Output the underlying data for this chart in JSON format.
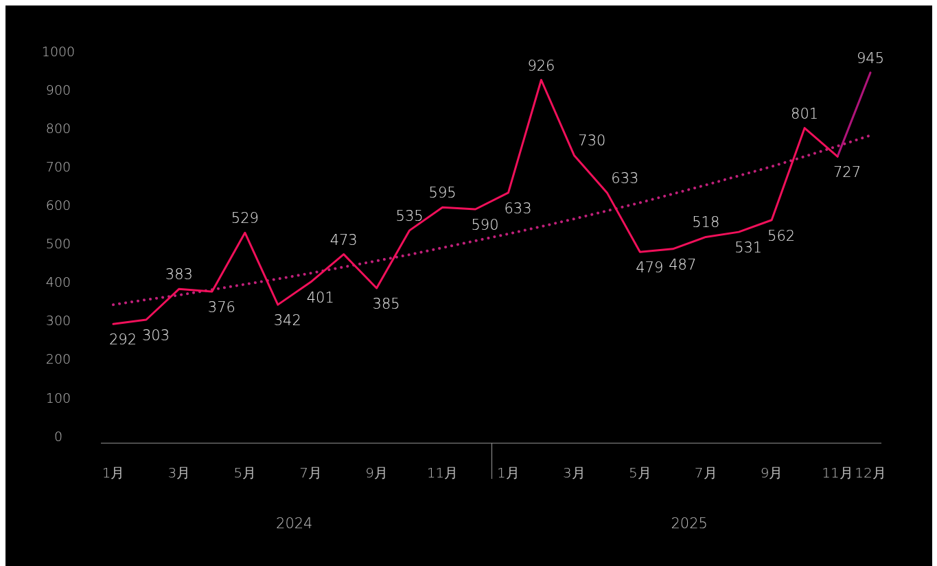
{
  "chart_data": {
    "type": "line",
    "categories": [
      "1月",
      null,
      "3月",
      null,
      "5月",
      null,
      "7月",
      null,
      "9月",
      null,
      "11月",
      null,
      "1月",
      null,
      "3月",
      null,
      "5月",
      null,
      "7月",
      null,
      "9月",
      null,
      "11月",
      "12月"
    ],
    "series": [
      {
        "color": "#f0105a",
        "values": [
          292,
          303,
          383,
          376,
          529,
          342,
          401,
          473,
          385,
          535,
          595,
          590,
          633,
          926,
          730,
          633,
          479,
          487,
          518,
          531,
          562,
          801,
          727,
          null
        ],
        "value_labels": [
          "292",
          "303",
          "383",
          "376",
          "529",
          "342",
          "401",
          "473",
          "385",
          "535",
          "595",
          "590",
          "633",
          "926",
          "730",
          "633",
          "479",
          "487",
          "518",
          "531",
          "562",
          "801",
          "727",
          null
        ]
      },
      {
        "color": "#b0147a",
        "values": [
          null,
          null,
          null,
          null,
          null,
          null,
          null,
          null,
          null,
          null,
          null,
          null,
          null,
          null,
          null,
          null,
          null,
          null,
          null,
          null,
          null,
          null,
          727,
          945
        ],
        "value_labels": [
          null,
          null,
          null,
          null,
          null,
          null,
          null,
          null,
          null,
          null,
          null,
          null,
          null,
          null,
          null,
          null,
          null,
          null,
          null,
          null,
          null,
          null,
          null,
          "945"
        ]
      },
      {
        "color": "#c0207a",
        "line_style": "dotted",
        "values": [
          342,
          355,
          367,
          381,
          395,
          409,
          424,
          440,
          456,
          472,
          490,
          508,
          526,
          545,
          565,
          586,
          607,
          630,
          653,
          677,
          701,
          727,
          754,
          782
        ]
      }
    ],
    "ylim": [
      0,
      1000
    ],
    "yticks": [
      0,
      100,
      200,
      300,
      400,
      500,
      600,
      700,
      800,
      900,
      1000
    ],
    "annotations": [
      "2024",
      "2025"
    ]
  }
}
